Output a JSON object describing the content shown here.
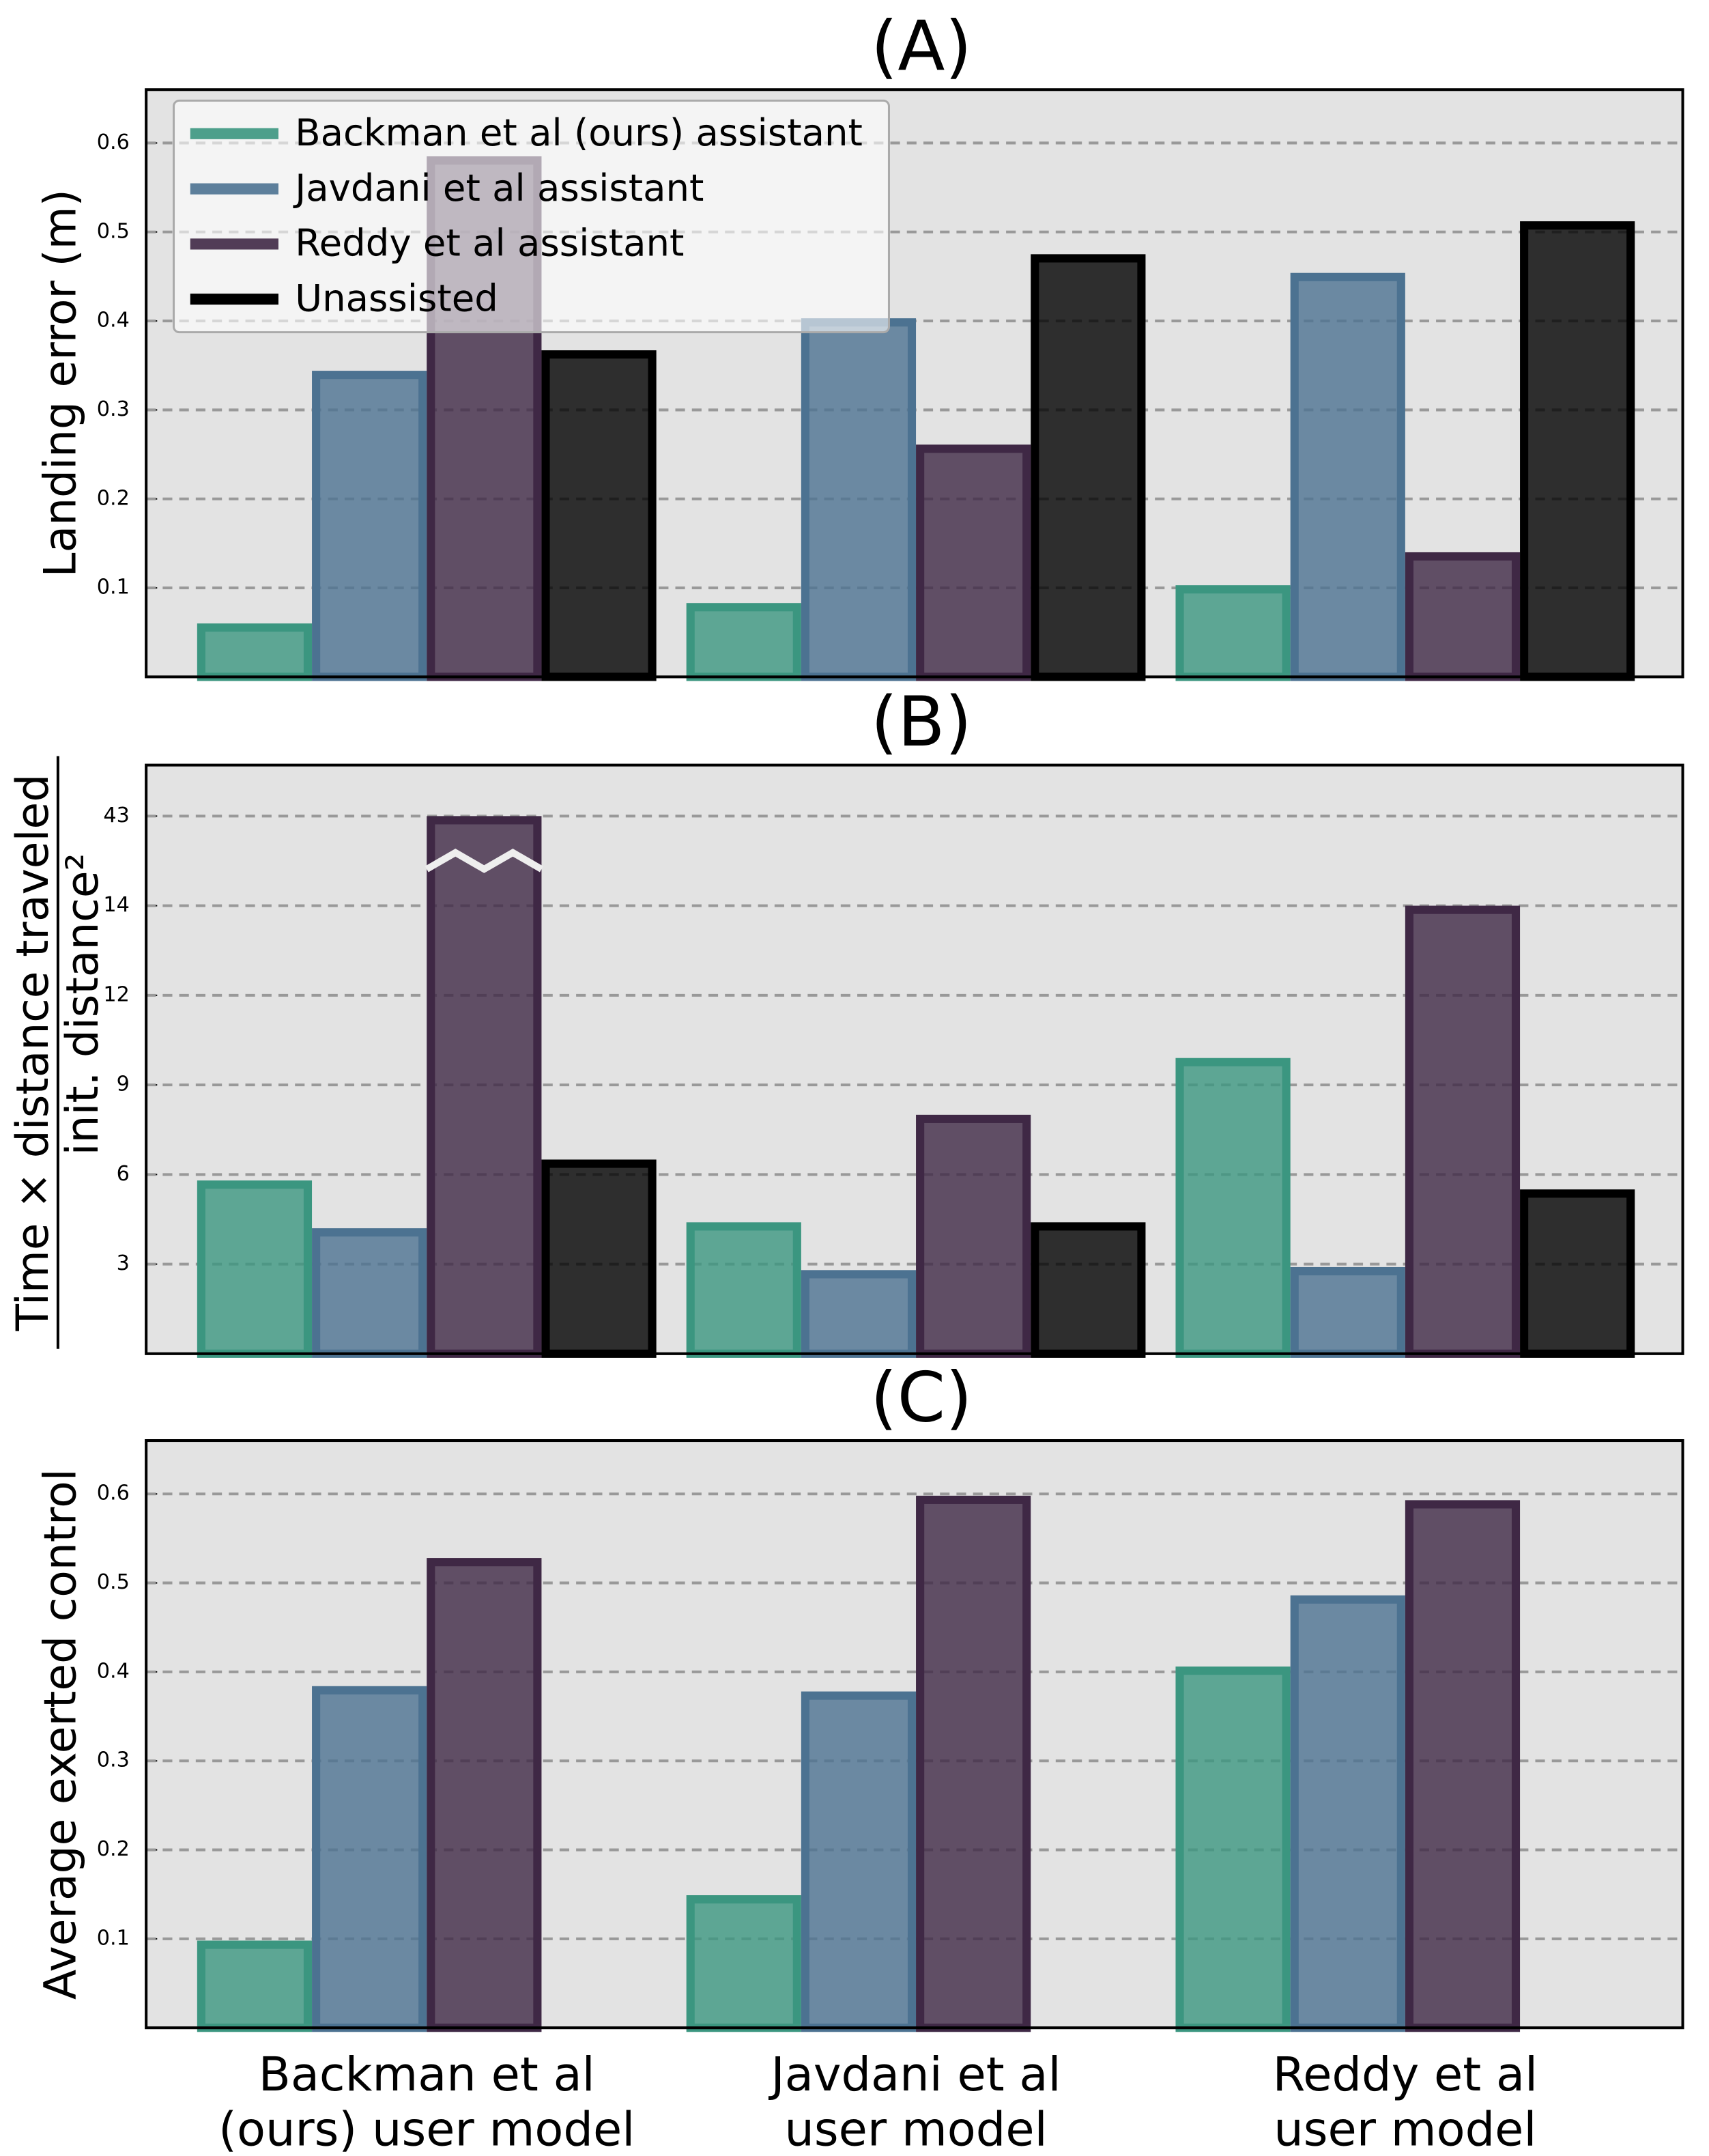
{
  "chart_data": [
    {
      "type": "bar",
      "title": "(A)",
      "ylabel": "Landing error (m)",
      "ylim": [
        0,
        0.66
      ],
      "yticks": [
        0.1,
        0.2,
        0.3,
        0.4,
        0.5,
        0.6
      ],
      "grid": true,
      "legend": "upper left",
      "series": [
        {
          "name": "Backman et al (ours) assistant",
          "color": "#3b9680",
          "values": [
            0.06,
            0.083,
            0.103
          ]
        },
        {
          "name": "Javdani et al assistant",
          "color": "#4c7291",
          "values": [
            0.344,
            0.403,
            0.454
          ]
        },
        {
          "name": "Reddy et al assistant",
          "color": "#3f2845",
          "values": [
            0.585,
            0.261,
            0.14
          ]
        },
        {
          "name": "Unassisted",
          "color": "#000000",
          "values": [
            0.367,
            0.475,
            0.512
          ]
        }
      ]
    },
    {
      "type": "bar",
      "title": "(B)",
      "ylabel": [
        "Time × distance traveled",
        "init. distance²"
      ],
      "ylim": [
        0,
        60
      ],
      "yticks": [
        3,
        6,
        9,
        12,
        14,
        43
      ],
      "grid": true,
      "axis_break": true,
      "series": [
        {
          "color": "#3b9680",
          "values": [
            5.8,
            4.4,
            9.9
          ]
        },
        {
          "color": "#4c7291",
          "values": [
            4.2,
            2.8,
            2.9
          ]
        },
        {
          "color": "#3f2845",
          "values": [
            43,
            8.0,
            14.0
          ]
        },
        {
          "color": "#000000",
          "values": [
            6.5,
            4.4,
            5.5
          ]
        }
      ]
    },
    {
      "type": "bar",
      "title": "(C)",
      "ylabel": "Average exerted control",
      "ylim": [
        0,
        0.66
      ],
      "yticks": [
        0.1,
        0.2,
        0.3,
        0.4,
        0.5,
        0.6
      ],
      "grid": true,
      "categories": [
        [
          "Backman et al",
          "(ours) user model"
        ],
        [
          "Javdani et al",
          "user model"
        ],
        [
          "Reddy et al",
          "user model"
        ]
      ],
      "series": [
        {
          "color": "#3b9680",
          "values": [
            0.098,
            0.149,
            0.406
          ]
        },
        {
          "color": "#4c7291",
          "values": [
            0.384,
            0.378,
            0.486
          ]
        },
        {
          "color": "#3f2845",
          "values": [
            0.528,
            0.598,
            0.593
          ]
        }
      ]
    }
  ]
}
